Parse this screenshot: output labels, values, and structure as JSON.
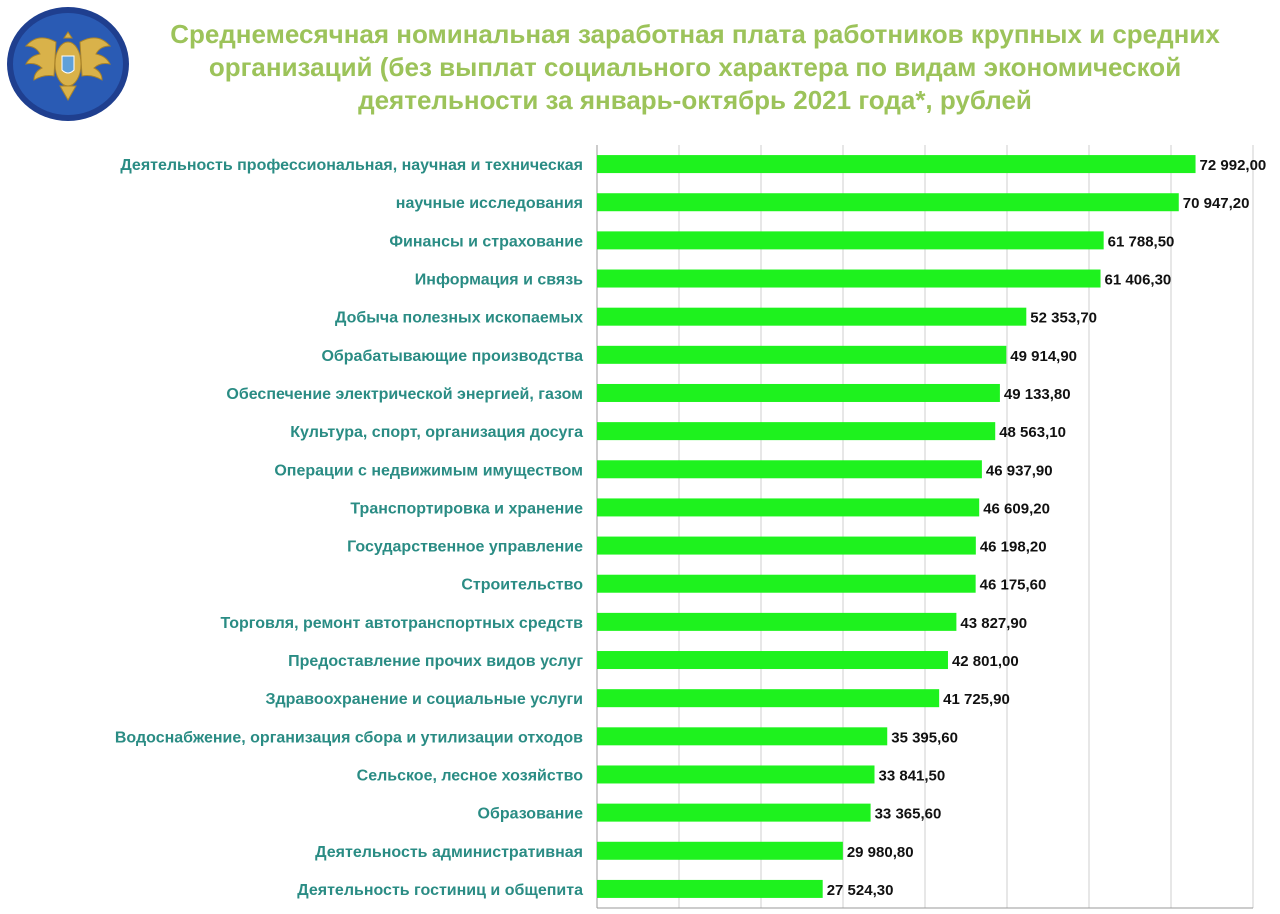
{
  "chart_data": {
    "type": "bar",
    "orientation": "horizontal",
    "title": "Среднемесячная номинальная заработная плата работников крупных и средних организаций (без выплат социального характера по видам экономической деятельности за январь-октябрь 2021 года*, рублей",
    "xlabel": "",
    "ylabel": "",
    "xlim": [
      0,
      80000
    ],
    "grid": true,
    "legend": "none",
    "bar_color": "#1ef21e",
    "title_color": "#9cc35a",
    "label_color": "#2a8c84",
    "categories": [
      "Деятельность профессиональная, научная и техническая",
      "научные исследования",
      "Финансы и страхование",
      "Информация и связь",
      "Добыча полезных ископаемых",
      "Обрабатывающие производства",
      "Обеспечение электрической энергией, газом",
      "Культура, спорт, организация досуга",
      "Операции с недвижимым имуществом",
      "Транспортировка и хранение",
      "Государственное управление",
      "Строительство",
      "Торговля, ремонт автотранспортных средств",
      "Предоставление прочих видов услуг",
      "Здравоохранение и социальные услуги",
      "Водоснабжение, организация сбора и утилизации отходов",
      "Сельское, лесное хозяйство",
      "Образование",
      "Деятельность административная",
      "Деятельность гостиниц и общепита"
    ],
    "values": [
      72992.0,
      70947.2,
      61788.5,
      61406.3,
      52353.7,
      49914.9,
      49133.8,
      48563.1,
      46937.9,
      46609.2,
      46198.2,
      46175.6,
      43827.9,
      42801.0,
      41725.9,
      35395.6,
      33841.5,
      33365.6,
      29980.8,
      27524.3
    ],
    "value_labels": [
      "72 992,00",
      "70 947,20",
      "61 788,50",
      "61 406,30",
      "52 353,70",
      "49 914,90",
      "49 133,80",
      "48 563,10",
      "46 937,90",
      "46 609,20",
      "46 198,20",
      "46 175,60",
      "43 827,90",
      "42 801,00",
      "41 725,90",
      "35 395,60",
      "33 841,50",
      "33 365,60",
      "29 980,80",
      "27 524,30"
    ]
  },
  "logo": {
    "name": "emblem-logo"
  }
}
